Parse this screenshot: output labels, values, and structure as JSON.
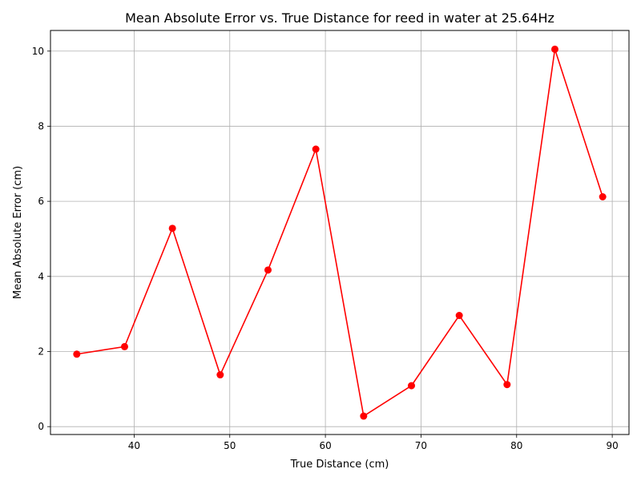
{
  "chart_data": {
    "type": "line",
    "title": "Mean Absolute Error vs. True Distance for reed in water at 25.64Hz",
    "xlabel": "True Distance (cm)",
    "ylabel": "Mean Absolute Error (cm)",
    "xlim": [
      31.25,
      91.75
    ],
    "ylim": [
      -0.21,
      10.55
    ],
    "xticks": [
      40,
      50,
      60,
      70,
      80,
      90
    ],
    "yticks": [
      0,
      2,
      4,
      6,
      8,
      10
    ],
    "grid": true,
    "marker": "circle",
    "series": [
      {
        "color": "#ff0000",
        "x": [
          34,
          39,
          44,
          49,
          54,
          59,
          64,
          69,
          74,
          79,
          84,
          89
        ],
        "y": [
          1.93,
          2.13,
          5.28,
          1.38,
          4.17,
          7.39,
          0.28,
          1.09,
          2.96,
          1.12,
          10.05,
          6.12
        ]
      }
    ]
  }
}
